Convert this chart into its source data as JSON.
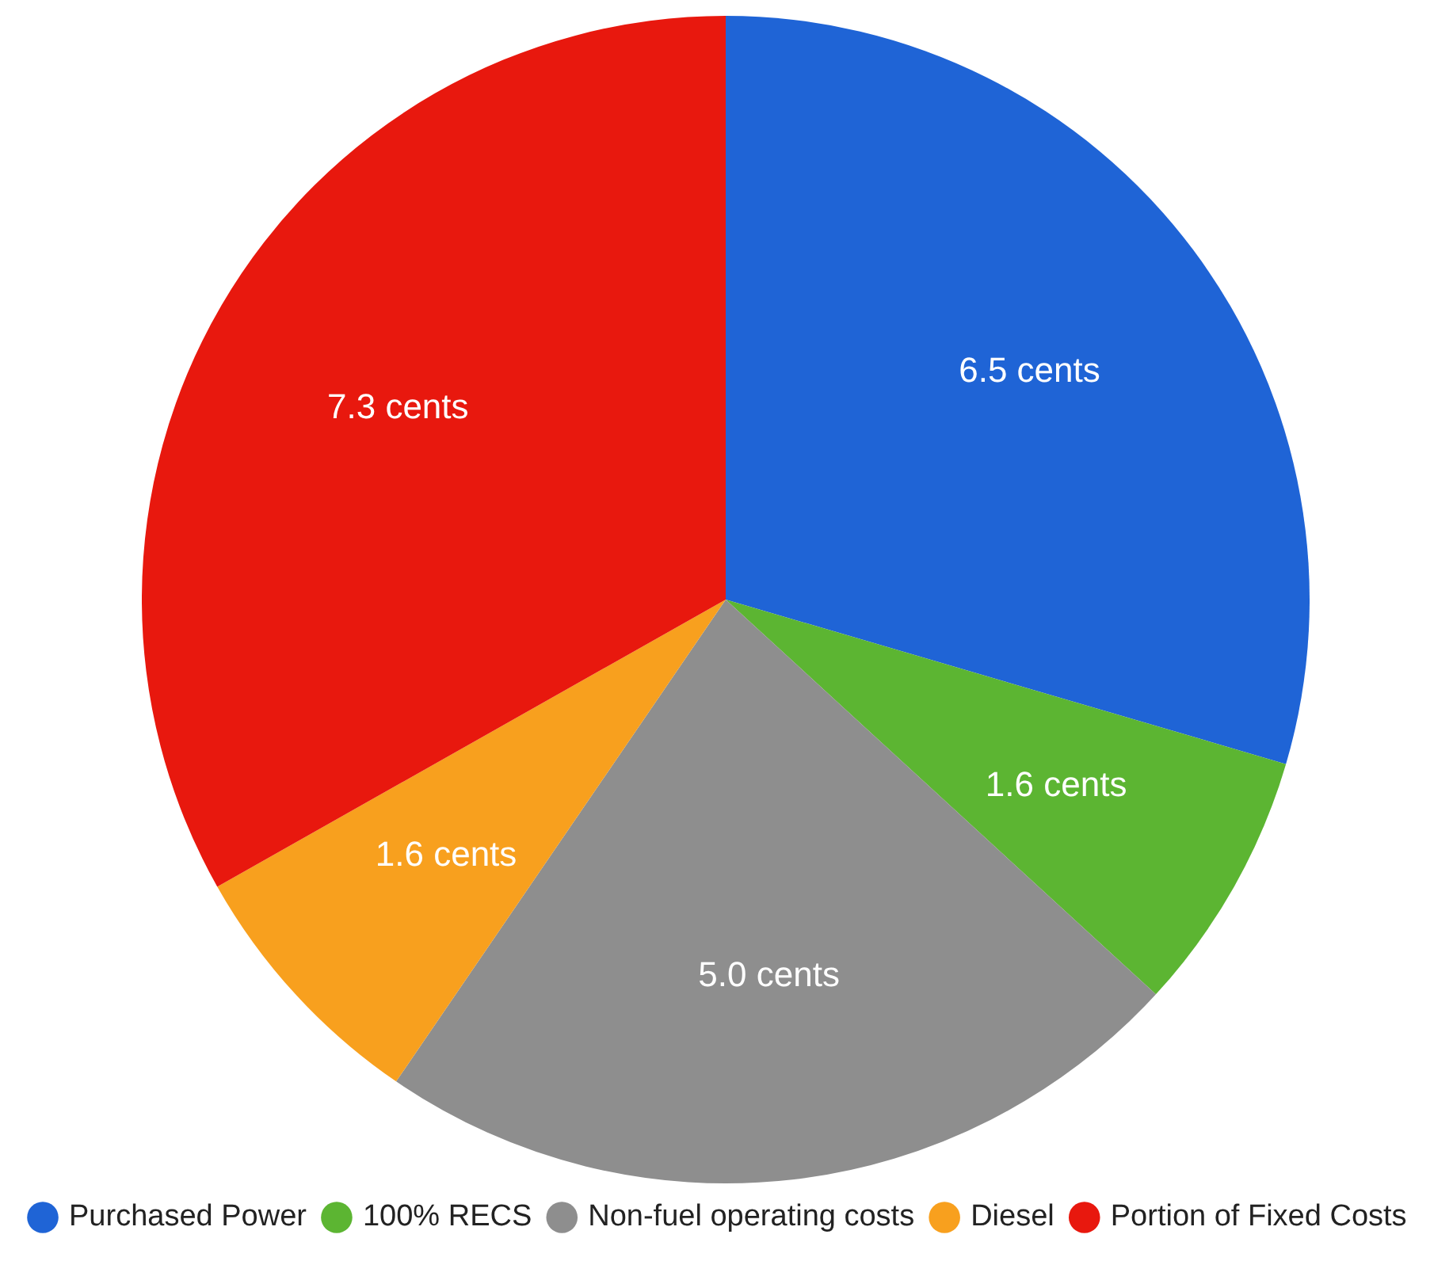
{
  "chart_data": {
    "type": "pie",
    "categories": [
      "Purchased Power",
      "100% RECS",
      "Non-fuel operating costs",
      "Diesel",
      "Portion of Fixed Costs"
    ],
    "values": [
      6.5,
      1.6,
      5.0,
      1.6,
      7.3
    ],
    "colors": [
      "#1f64d6",
      "#5cb532",
      "#8e8e8e",
      "#f8a01e",
      "#e8180e"
    ],
    "value_labels": [
      "6.5 cents",
      "1.6 cents",
      "5.0 cents",
      "1.6 cents",
      "7.3 cents"
    ],
    "legend": "bottom"
  }
}
